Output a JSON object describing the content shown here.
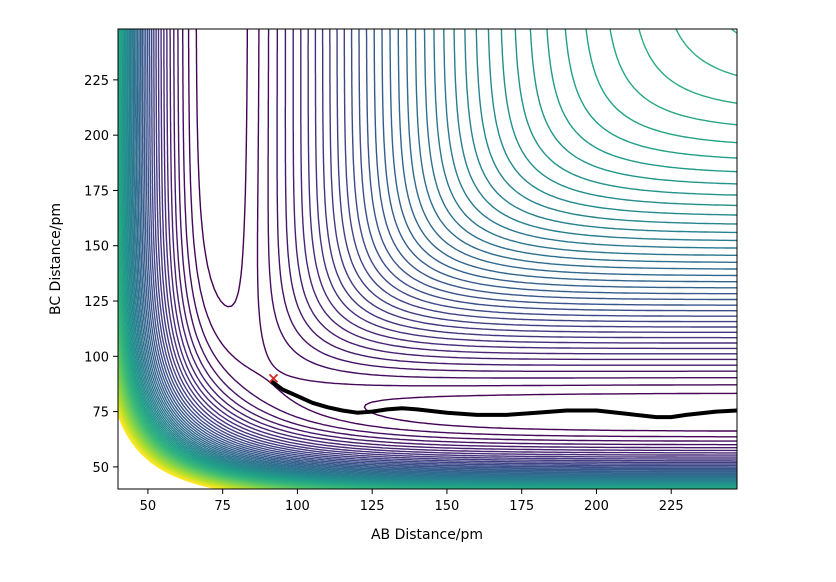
{
  "chart_data": {
    "type": "contour",
    "title": "",
    "xlabel": "AB Distance/pm",
    "ylabel": "BC Distance/pm",
    "xlim": [
      40,
      247
    ],
    "ylim": [
      40,
      248
    ],
    "x_ticks": [
      50,
      75,
      100,
      125,
      150,
      175,
      200,
      225
    ],
    "y_ticks": [
      50,
      75,
      100,
      125,
      150,
      175,
      200,
      225
    ],
    "x_tick_labels": [
      "50",
      "75",
      "100",
      "125",
      "150",
      "175",
      "200",
      "225"
    ],
    "y_tick_labels": [
      "50",
      "75",
      "100",
      "125",
      "150",
      "175",
      "200",
      "225"
    ],
    "grid": false,
    "colormap": "viridis",
    "contour_colors": [
      "#440154",
      "#482878",
      "#3e4a89",
      "#31688e",
      "#26828e",
      "#1f9e89",
      "#35b779",
      "#6ece58",
      "#b5de2b",
      "#fde725"
    ],
    "surface": {
      "description": "London-Eyring-Polanyi-Sato style potential energy surface",
      "equilibrium_distance_pm": 74,
      "dissociation_energy": 432,
      "morse_beta_per_pm": 0.0193,
      "contour_levels": {
        "start": -420,
        "step": 10,
        "count": 60
      }
    },
    "trajectory": {
      "color": "#000000",
      "x": [
        91,
        95,
        100,
        105,
        110,
        115,
        120,
        125,
        130,
        135,
        140,
        150,
        160,
        170,
        180,
        190,
        200,
        210,
        220,
        225,
        230,
        240,
        247
      ],
      "y": [
        89,
        85,
        82,
        79,
        77,
        75.5,
        74.5,
        75,
        76,
        76.5,
        76,
        74.5,
        73.5,
        73.5,
        74.5,
        75.5,
        75.5,
        74,
        72.5,
        72.5,
        73.5,
        75,
        75.5
      ]
    },
    "start_marker": {
      "x": 92,
      "y": 90,
      "symbol": "x",
      "color": "#d62728"
    }
  }
}
